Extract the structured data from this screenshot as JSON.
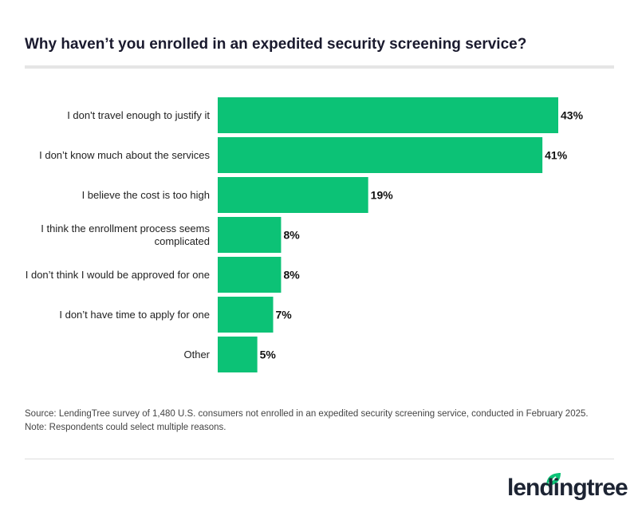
{
  "title": "Why haven’t you enrolled in an expedited security screening service?",
  "chart_data": {
    "type": "bar",
    "orientation": "horizontal",
    "categories": [
      "I don't travel enough to justify it",
      "I don’t know much about the services",
      "I believe the cost is too high",
      "I think the enrollment process seems complicated",
      "I don’t think I would be approved for one",
      "I don’t have time to apply for one",
      "Other"
    ],
    "values": [
      43,
      41,
      19,
      8,
      8,
      7,
      5
    ],
    "value_labels": [
      "43%",
      "41%",
      "19%",
      "8%",
      "8%",
      "7%",
      "5%"
    ],
    "unit": "%",
    "bar_color": "#0cc276",
    "grid": false
  },
  "footer": {
    "source": "Source: LendingTree survey of 1,480 U.S. consumers not enrolled in an expedited security screening service, conducted in February 2025.",
    "note": "Note: Respondents could select multiple reasons."
  },
  "logo": {
    "text": "lendingtree",
    "color": "#1d2433",
    "leaf_color": "#0cc276"
  }
}
